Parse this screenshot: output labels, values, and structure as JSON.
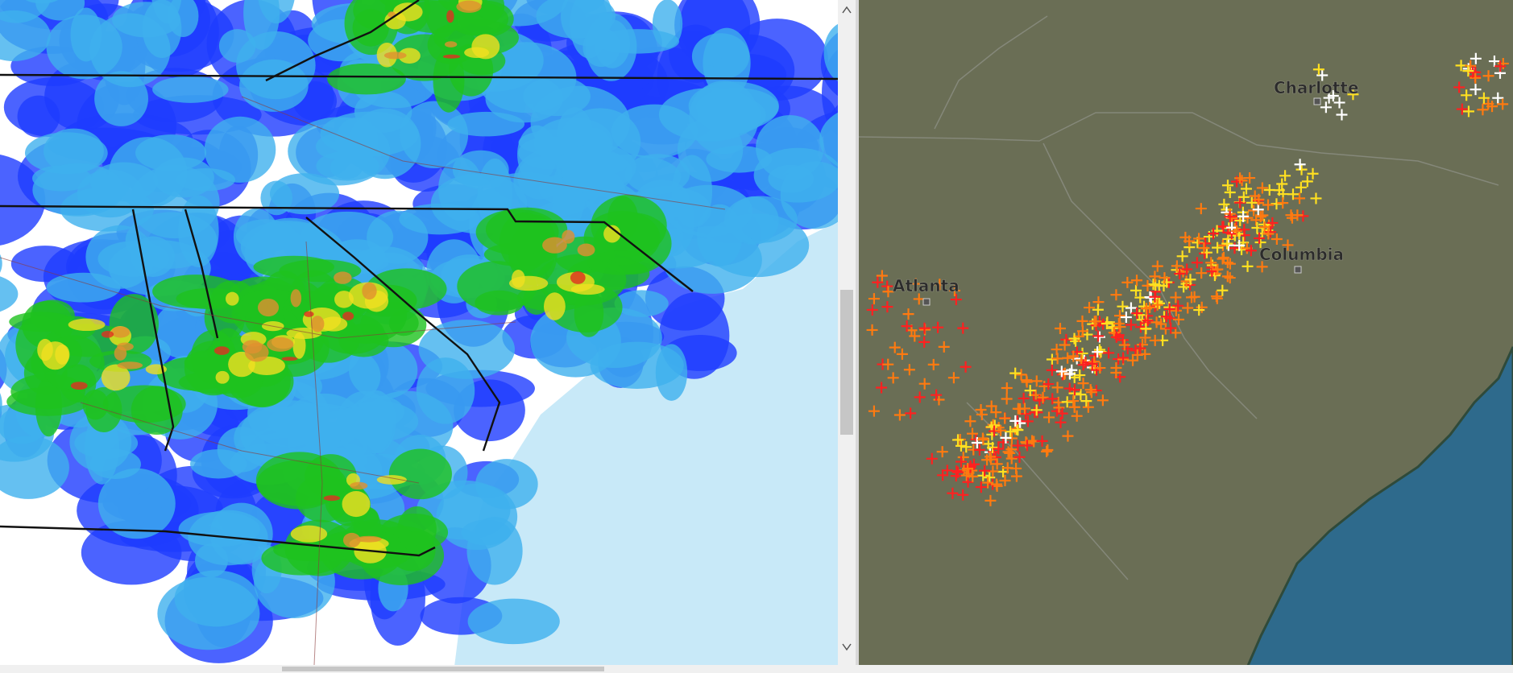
{
  "cities": [
    "Charlotte",
    "Atlanta",
    "Columbia"
  ]
}
